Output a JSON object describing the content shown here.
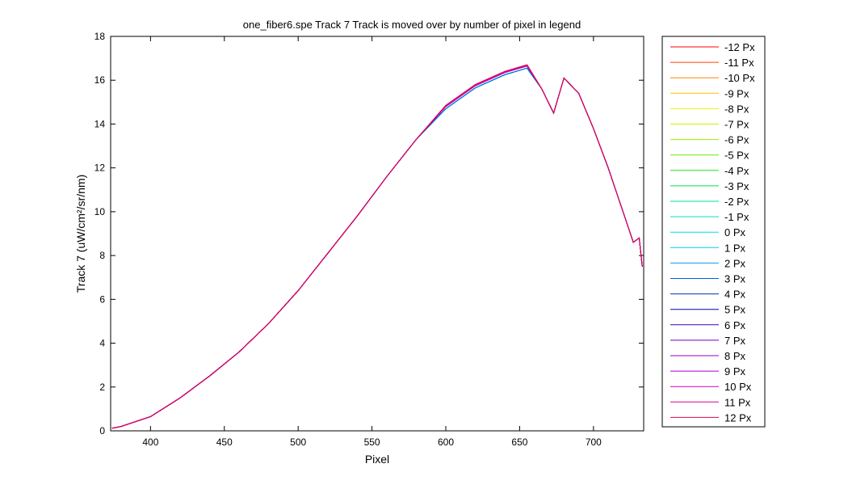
{
  "chart_data": {
    "type": "line",
    "title": "one_fiber6.spe   Track 7     Track is moved over by number of pixel in legend",
    "x_label": "Pixel",
    "y_label": "Track 7 (uW/cm²/sr/nm)",
    "xlim": [
      373,
      734
    ],
    "ylim": [
      0,
      18
    ],
    "xticks": [
      400,
      450,
      500,
      550,
      600,
      650,
      700
    ],
    "yticks": [
      0,
      2,
      4,
      6,
      8,
      10,
      12,
      14,
      16,
      18
    ],
    "legend": "outside-right",
    "x": [
      374,
      380,
      400,
      420,
      440,
      460,
      480,
      500,
      520,
      540,
      560,
      580,
      600,
      620,
      640,
      655,
      665,
      673,
      680,
      690,
      700,
      710,
      720,
      727,
      731,
      733
    ],
    "series": [
      {
        "name": "-12 Px",
        "color": "#ff0000",
        "values": [
          0.12,
          0.2,
          0.65,
          1.5,
          2.5,
          3.6,
          4.9,
          6.4,
          8.1,
          9.8,
          11.6,
          13.3,
          14.85,
          15.8,
          16.4,
          16.7,
          15.6,
          14.5,
          16.1,
          15.4,
          13.8,
          12.0,
          10.0,
          8.6,
          8.8,
          7.5
        ]
      },
      {
        "name": "-11 Px",
        "color": "#ff4000",
        "values": [
          0.12,
          0.2,
          0.65,
          1.5,
          2.5,
          3.6,
          4.9,
          6.4,
          8.1,
          9.8,
          11.6,
          13.3,
          14.85,
          15.8,
          16.4,
          16.7,
          15.6,
          14.5,
          16.1,
          15.4,
          13.8,
          12.0,
          10.0,
          8.6,
          8.8,
          7.5
        ]
      },
      {
        "name": "-10 Px",
        "color": "#ff8000",
        "values": [
          0.12,
          0.2,
          0.65,
          1.5,
          2.5,
          3.6,
          4.9,
          6.4,
          8.1,
          9.8,
          11.6,
          13.3,
          14.85,
          15.8,
          16.4,
          16.7,
          15.6,
          14.5,
          16.1,
          15.4,
          13.8,
          12.0,
          10.0,
          8.6,
          8.8,
          7.5
        ]
      },
      {
        "name": "-9 Px",
        "color": "#ffbf00",
        "values": [
          0.12,
          0.2,
          0.65,
          1.5,
          2.5,
          3.6,
          4.9,
          6.4,
          8.1,
          9.8,
          11.6,
          13.3,
          14.8,
          15.75,
          16.35,
          16.65,
          15.6,
          14.5,
          16.1,
          15.4,
          13.8,
          12.0,
          10.0,
          8.6,
          8.8,
          7.5
        ]
      },
      {
        "name": "-8 Px",
        "color": "#f0f000",
        "values": [
          0.12,
          0.2,
          0.65,
          1.5,
          2.5,
          3.6,
          4.9,
          6.4,
          8.1,
          9.8,
          11.6,
          13.3,
          14.8,
          15.75,
          16.35,
          16.65,
          15.6,
          14.5,
          16.1,
          15.4,
          13.8,
          12.0,
          10.0,
          8.6,
          8.8,
          7.5
        ]
      },
      {
        "name": "-7 Px",
        "color": "#d0f000",
        "values": [
          0.12,
          0.2,
          0.65,
          1.5,
          2.5,
          3.6,
          4.9,
          6.4,
          8.1,
          9.8,
          11.6,
          13.3,
          14.8,
          15.75,
          16.35,
          16.65,
          15.6,
          14.5,
          16.1,
          15.4,
          13.8,
          12.0,
          10.0,
          8.6,
          8.8,
          7.5
        ]
      },
      {
        "name": "-6 Px",
        "color": "#a0f000",
        "values": [
          0.12,
          0.2,
          0.65,
          1.5,
          2.5,
          3.6,
          4.9,
          6.4,
          8.1,
          9.8,
          11.6,
          13.3,
          14.8,
          15.75,
          16.35,
          16.65,
          15.6,
          14.5,
          16.1,
          15.4,
          13.8,
          12.0,
          10.0,
          8.6,
          8.8,
          7.5
        ]
      },
      {
        "name": "-5 Px",
        "color": "#60f000",
        "values": [
          0.12,
          0.2,
          0.65,
          1.5,
          2.5,
          3.6,
          4.9,
          6.4,
          8.1,
          9.8,
          11.6,
          13.3,
          14.8,
          15.75,
          16.35,
          16.65,
          15.6,
          14.5,
          16.1,
          15.4,
          13.8,
          12.0,
          10.0,
          8.6,
          8.8,
          7.5
        ]
      },
      {
        "name": "-4 Px",
        "color": "#20e020",
        "values": [
          0.12,
          0.2,
          0.65,
          1.5,
          2.5,
          3.6,
          4.9,
          6.4,
          8.1,
          9.8,
          11.6,
          13.3,
          14.8,
          15.75,
          16.35,
          16.65,
          15.6,
          14.5,
          16.1,
          15.4,
          13.8,
          12.0,
          10.0,
          8.6,
          8.8,
          7.5
        ]
      },
      {
        "name": "-3 Px",
        "color": "#00e050",
        "values": [
          0.12,
          0.2,
          0.65,
          1.5,
          2.5,
          3.6,
          4.9,
          6.4,
          8.1,
          9.8,
          11.6,
          13.3,
          14.8,
          15.75,
          16.35,
          16.65,
          15.6,
          14.5,
          16.1,
          15.4,
          13.8,
          12.0,
          10.0,
          8.6,
          8.8,
          7.5
        ]
      },
      {
        "name": "-2 Px",
        "color": "#00e090",
        "values": [
          0.12,
          0.2,
          0.65,
          1.5,
          2.5,
          3.6,
          4.9,
          6.4,
          8.1,
          9.8,
          11.6,
          13.3,
          14.7,
          15.65,
          16.25,
          16.55,
          15.6,
          14.5,
          16.1,
          15.4,
          13.8,
          12.0,
          10.0,
          8.6,
          8.8,
          7.5
        ]
      },
      {
        "name": "-1 Px",
        "color": "#00e0c0",
        "values": [
          0.12,
          0.2,
          0.65,
          1.5,
          2.5,
          3.6,
          4.9,
          6.4,
          8.1,
          9.8,
          11.6,
          13.3,
          14.7,
          15.65,
          16.25,
          16.55,
          15.6,
          14.5,
          16.1,
          15.4,
          13.8,
          12.0,
          10.0,
          8.6,
          8.8,
          7.5
        ]
      },
      {
        "name": "0 Px",
        "color": "#00e0e0",
        "values": [
          0.12,
          0.2,
          0.65,
          1.5,
          2.5,
          3.6,
          4.9,
          6.4,
          8.1,
          9.8,
          11.6,
          13.3,
          14.7,
          15.65,
          16.25,
          16.55,
          15.6,
          14.5,
          16.1,
          15.4,
          13.8,
          12.0,
          10.0,
          8.6,
          8.8,
          7.5
        ]
      },
      {
        "name": "1 Px",
        "color": "#00d0f0",
        "values": [
          0.12,
          0.2,
          0.65,
          1.5,
          2.5,
          3.6,
          4.9,
          6.4,
          8.1,
          9.8,
          11.6,
          13.3,
          14.7,
          15.65,
          16.25,
          16.55,
          15.6,
          14.5,
          16.1,
          15.4,
          13.8,
          12.0,
          10.0,
          8.6,
          8.8,
          7.5
        ]
      },
      {
        "name": "2 Px",
        "color": "#00a0f0",
        "values": [
          0.12,
          0.2,
          0.65,
          1.5,
          2.5,
          3.6,
          4.9,
          6.4,
          8.1,
          9.8,
          11.6,
          13.3,
          14.7,
          15.65,
          16.25,
          16.55,
          15.6,
          14.5,
          16.1,
          15.4,
          13.8,
          12.0,
          10.0,
          8.6,
          8.8,
          7.5
        ]
      },
      {
        "name": "3 Px",
        "color": "#0060e0",
        "values": [
          0.12,
          0.2,
          0.65,
          1.5,
          2.5,
          3.6,
          4.9,
          6.4,
          8.1,
          9.8,
          11.6,
          13.3,
          14.7,
          15.65,
          16.25,
          16.55,
          15.6,
          14.5,
          16.1,
          15.4,
          13.8,
          12.0,
          10.0,
          8.6,
          8.8,
          7.5
        ]
      },
      {
        "name": "4 Px",
        "color": "#0030c0",
        "values": [
          0.12,
          0.2,
          0.65,
          1.5,
          2.5,
          3.6,
          4.9,
          6.4,
          8.1,
          9.8,
          11.6,
          13.3,
          14.8,
          15.75,
          16.35,
          16.65,
          15.6,
          14.5,
          16.1,
          15.4,
          13.8,
          12.0,
          10.0,
          8.6,
          8.8,
          7.5
        ]
      },
      {
        "name": "5 Px",
        "color": "#0000b0",
        "values": [
          0.12,
          0.2,
          0.65,
          1.5,
          2.5,
          3.6,
          4.9,
          6.4,
          8.1,
          9.8,
          11.6,
          13.3,
          14.8,
          15.75,
          16.35,
          16.65,
          15.6,
          14.5,
          16.1,
          15.4,
          13.8,
          12.0,
          10.0,
          8.6,
          8.8,
          7.5
        ]
      },
      {
        "name": "6 Px",
        "color": "#4000b0",
        "values": [
          0.12,
          0.2,
          0.65,
          1.5,
          2.5,
          3.6,
          4.9,
          6.4,
          8.1,
          9.8,
          11.6,
          13.3,
          14.8,
          15.75,
          16.35,
          16.65,
          15.6,
          14.5,
          16.1,
          15.4,
          13.8,
          12.0,
          10.0,
          8.6,
          8.8,
          7.5
        ]
      },
      {
        "name": "7 Px",
        "color": "#7000c0",
        "values": [
          0.12,
          0.2,
          0.65,
          1.5,
          2.5,
          3.6,
          4.9,
          6.4,
          8.1,
          9.8,
          11.6,
          13.3,
          14.8,
          15.75,
          16.35,
          16.65,
          15.6,
          14.5,
          16.1,
          15.4,
          13.8,
          12.0,
          10.0,
          8.6,
          8.8,
          7.5
        ]
      },
      {
        "name": "8 Px",
        "color": "#9000d0",
        "values": [
          0.12,
          0.2,
          0.65,
          1.5,
          2.5,
          3.6,
          4.9,
          6.4,
          8.1,
          9.8,
          11.6,
          13.3,
          14.8,
          15.75,
          16.35,
          16.65,
          15.6,
          14.5,
          16.1,
          15.4,
          13.8,
          12.0,
          10.0,
          8.6,
          8.8,
          7.5
        ]
      },
      {
        "name": "9 Px",
        "color": "#b000d0",
        "values": [
          0.12,
          0.2,
          0.65,
          1.5,
          2.5,
          3.6,
          4.9,
          6.4,
          8.1,
          9.8,
          11.6,
          13.3,
          14.8,
          15.75,
          16.35,
          16.65,
          15.6,
          14.5,
          16.1,
          15.4,
          13.8,
          12.0,
          10.0,
          8.6,
          8.8,
          7.5
        ]
      },
      {
        "name": "10 Px",
        "color": "#d000c0",
        "values": [
          0.12,
          0.2,
          0.65,
          1.5,
          2.5,
          3.6,
          4.9,
          6.4,
          8.1,
          9.8,
          11.6,
          13.3,
          14.8,
          15.75,
          16.35,
          16.65,
          15.6,
          14.5,
          16.1,
          15.4,
          13.8,
          12.0,
          10.0,
          8.6,
          8.8,
          7.5
        ]
      },
      {
        "name": "11 Px",
        "color": "#e00090",
        "values": [
          0.12,
          0.2,
          0.65,
          1.5,
          2.5,
          3.6,
          4.9,
          6.4,
          8.1,
          9.8,
          11.6,
          13.3,
          14.85,
          15.8,
          16.4,
          16.7,
          15.6,
          14.5,
          16.1,
          15.4,
          13.8,
          12.0,
          10.0,
          8.6,
          8.8,
          7.5
        ]
      },
      {
        "name": "12 Px",
        "color": "#e00050",
        "values": [
          0.12,
          0.2,
          0.65,
          1.5,
          2.5,
          3.6,
          4.9,
          6.4,
          8.1,
          9.8,
          11.6,
          13.3,
          14.85,
          15.8,
          16.4,
          16.7,
          15.6,
          14.5,
          16.1,
          15.4,
          13.8,
          12.0,
          10.0,
          8.6,
          8.8,
          7.5
        ]
      }
    ]
  }
}
